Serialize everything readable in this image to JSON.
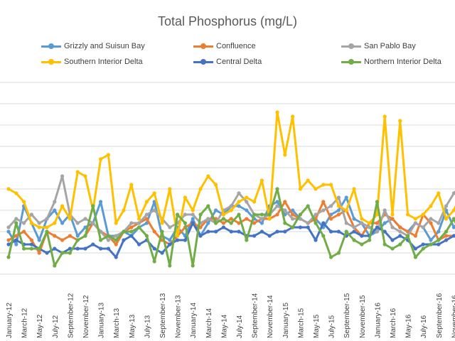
{
  "chart_data": {
    "type": "line",
    "title": "Total Phosphorus (mg/L)",
    "xlabel": "",
    "ylabel": "",
    "ylim": [
      0,
      0.45
    ],
    "grid": true,
    "legend": "top",
    "x": [
      "January-12",
      "February-12",
      "March-12",
      "April-12",
      "May-12",
      "June-12",
      "July-12",
      "August-12",
      "September-12",
      "October-12",
      "November-12",
      "December-12",
      "January-13",
      "February-13",
      "March-13",
      "April-13",
      "May-13",
      "June-13",
      "July-13",
      "August-13",
      "September-13",
      "October-13",
      "November-13",
      "December-13",
      "January-14",
      "February-14",
      "March-14",
      "April-14",
      "May-14",
      "June-14",
      "July-14",
      "August-14",
      "September-14",
      "October-14",
      "November-14",
      "December-14",
      "January-15",
      "February-15",
      "March-15",
      "April-15",
      "May-15",
      "June-15",
      "July-15",
      "August-15",
      "September-15",
      "October-15",
      "November-15",
      "December-15",
      "January-16",
      "February-16",
      "March-16",
      "April-16",
      "May-16",
      "June-16",
      "July-16",
      "August-16",
      "September-16",
      "October-16",
      "November-16",
      "December-16"
    ],
    "x_tick_labels": [
      "January-12",
      "March-12",
      "May-12",
      "July-12",
      "September-12",
      "November-12",
      "January-13",
      "March-13",
      "May-13",
      "July-13",
      "September-13",
      "November-13",
      "January-14",
      "March-14",
      "May-14",
      "July-14",
      "September-14",
      "November-14",
      "January-15",
      "March-15",
      "May-15",
      "July-15",
      "September-15",
      "November-15",
      "January-16",
      "March-16",
      "May-16",
      "July-16",
      "September-16",
      "November-16"
    ],
    "series": [
      {
        "name": "Grizzly and Suisun Bay",
        "color": "#5B9BD5",
        "values": [
          0.1,
          0.07,
          0.16,
          0.12,
          0.08,
          0.13,
          0.15,
          0.12,
          0.14,
          0.09,
          0.11,
          0.12,
          0.17,
          0.09,
          0.09,
          0.1,
          0.09,
          0.11,
          0.12,
          0.17,
          0.09,
          0.08,
          0.11,
          0.09,
          0.13,
          0.09,
          0.12,
          0.15,
          0.14,
          0.16,
          0.16,
          0.15,
          0.13,
          0.12,
          0.16,
          0.17,
          0.14,
          0.15,
          0.13,
          0.12,
          0.13,
          0.11,
          0.14,
          0.15,
          0.18,
          0.13,
          0.12,
          0.09,
          0.1,
          0.12,
          0.13,
          0.11,
          0.1,
          0.12,
          0.11,
          0.08,
          0.1,
          0.15,
          0.11,
          0.13
        ]
      },
      {
        "name": "Confluence",
        "color": "#ED7D31",
        "values": [
          0.08,
          0.09,
          0.1,
          0.08,
          0.05,
          0.1,
          0.09,
          0.08,
          0.09,
          0.08,
          0.09,
          0.12,
          0.1,
          0.09,
          0.07,
          0.1,
          0.11,
          0.12,
          0.13,
          0.1,
          0.08,
          0.07,
          0.09,
          0.11,
          0.12,
          0.11,
          0.13,
          0.13,
          0.12,
          0.13,
          0.12,
          0.13,
          0.12,
          0.13,
          0.13,
          0.14,
          0.17,
          0.14,
          0.13,
          0.12,
          0.13,
          0.17,
          0.13,
          0.14,
          0.15,
          0.11,
          0.09,
          0.12,
          0.12,
          0.14,
          0.13,
          0.11,
          0.1,
          0.09,
          0.14,
          0.12,
          0.08,
          0.09,
          0.09,
          0.1
        ]
      },
      {
        "name": "San Pablo Bay",
        "color": "#A5A5A5",
        "values": [
          0.11,
          0.13,
          0.12,
          0.14,
          0.12,
          0.13,
          0.17,
          0.23,
          0.14,
          0.12,
          0.13,
          0.12,
          0.1,
          0.08,
          0.09,
          0.1,
          0.12,
          0.12,
          0.14,
          0.15,
          0.13,
          0.11,
          0.12,
          0.14,
          0.14,
          0.12,
          0.13,
          0.12,
          0.15,
          0.16,
          0.19,
          0.17,
          0.14,
          0.13,
          0.14,
          0.16,
          0.15,
          0.13,
          0.13,
          0.12,
          0.14,
          0.15,
          0.16,
          0.18,
          0.12,
          0.11,
          0.12,
          0.11,
          0.1,
          0.15,
          0.11,
          0.1,
          0.09,
          0.12,
          0.11,
          0.13,
          0.12,
          0.16,
          0.19,
          0.21
        ]
      },
      {
        "name": "Southern Interior Delta",
        "color": "#FFC000",
        "values": [
          0.2,
          0.19,
          0.17,
          0.12,
          0.11,
          0.11,
          0.12,
          0.16,
          0.13,
          0.24,
          0.23,
          0.15,
          0.27,
          0.28,
          0.12,
          0.15,
          0.21,
          0.13,
          0.17,
          0.19,
          0.12,
          0.2,
          0.09,
          0.18,
          0.15,
          0.2,
          0.23,
          0.21,
          0.14,
          0.15,
          0.17,
          0.18,
          0.17,
          0.22,
          0.13,
          0.38,
          0.28,
          0.37,
          0.2,
          0.22,
          0.2,
          0.21,
          0.21,
          0.16,
          0.15,
          0.2,
          0.13,
          0.12,
          0.14,
          0.37,
          0.14,
          0.36,
          0.14,
          0.13,
          0.14,
          0.16,
          0.19,
          0.13,
          0.15,
          0.19
        ]
      },
      {
        "name": "Central Delta",
        "color": "#4472C4",
        "values": [
          0.07,
          0.08,
          0.07,
          0.07,
          0.06,
          0.05,
          0.06,
          0.05,
          0.06,
          0.06,
          0.06,
          0.07,
          0.06,
          0.06,
          0.04,
          0.08,
          0.09,
          0.07,
          0.08,
          0.06,
          0.05,
          0.07,
          0.08,
          0.08,
          0.12,
          0.09,
          0.1,
          0.1,
          0.11,
          0.1,
          0.1,
          0.09,
          0.09,
          0.1,
          0.09,
          0.1,
          0.1,
          0.11,
          0.11,
          0.11,
          0.08,
          0.12,
          0.1,
          0.1,
          0.09,
          0.1,
          0.09,
          0.09,
          0.11,
          0.1,
          0.08,
          0.09,
          0.08,
          0.06,
          0.07,
          0.07,
          0.07,
          0.08,
          0.09,
          0.1
        ]
      },
      {
        "name": "Northern Interior Delta",
        "color": "#70AD47",
        "values": [
          0.04,
          0.12,
          0.06,
          0.06,
          0.06,
          0.1,
          0.02,
          0.05,
          0.05,
          0.08,
          0.09,
          0.16,
          0.08,
          0.09,
          0.08,
          0.1,
          0.1,
          0.11,
          0.09,
          0.03,
          0.1,
          0.02,
          0.14,
          0.12,
          0.02,
          0.14,
          0.16,
          0.12,
          0.13,
          0.12,
          0.14,
          0.08,
          0.14,
          0.14,
          0.14,
          0.2,
          0.12,
          0.11,
          0.14,
          0.16,
          0.12,
          0.09,
          0.04,
          0.05,
          0.1,
          0.08,
          0.07,
          0.08,
          0.17,
          0.07,
          0.06,
          0.07,
          0.09,
          0.04,
          0.06,
          0.07,
          0.08,
          0.1,
          0.13,
          0.09
        ]
      }
    ]
  }
}
